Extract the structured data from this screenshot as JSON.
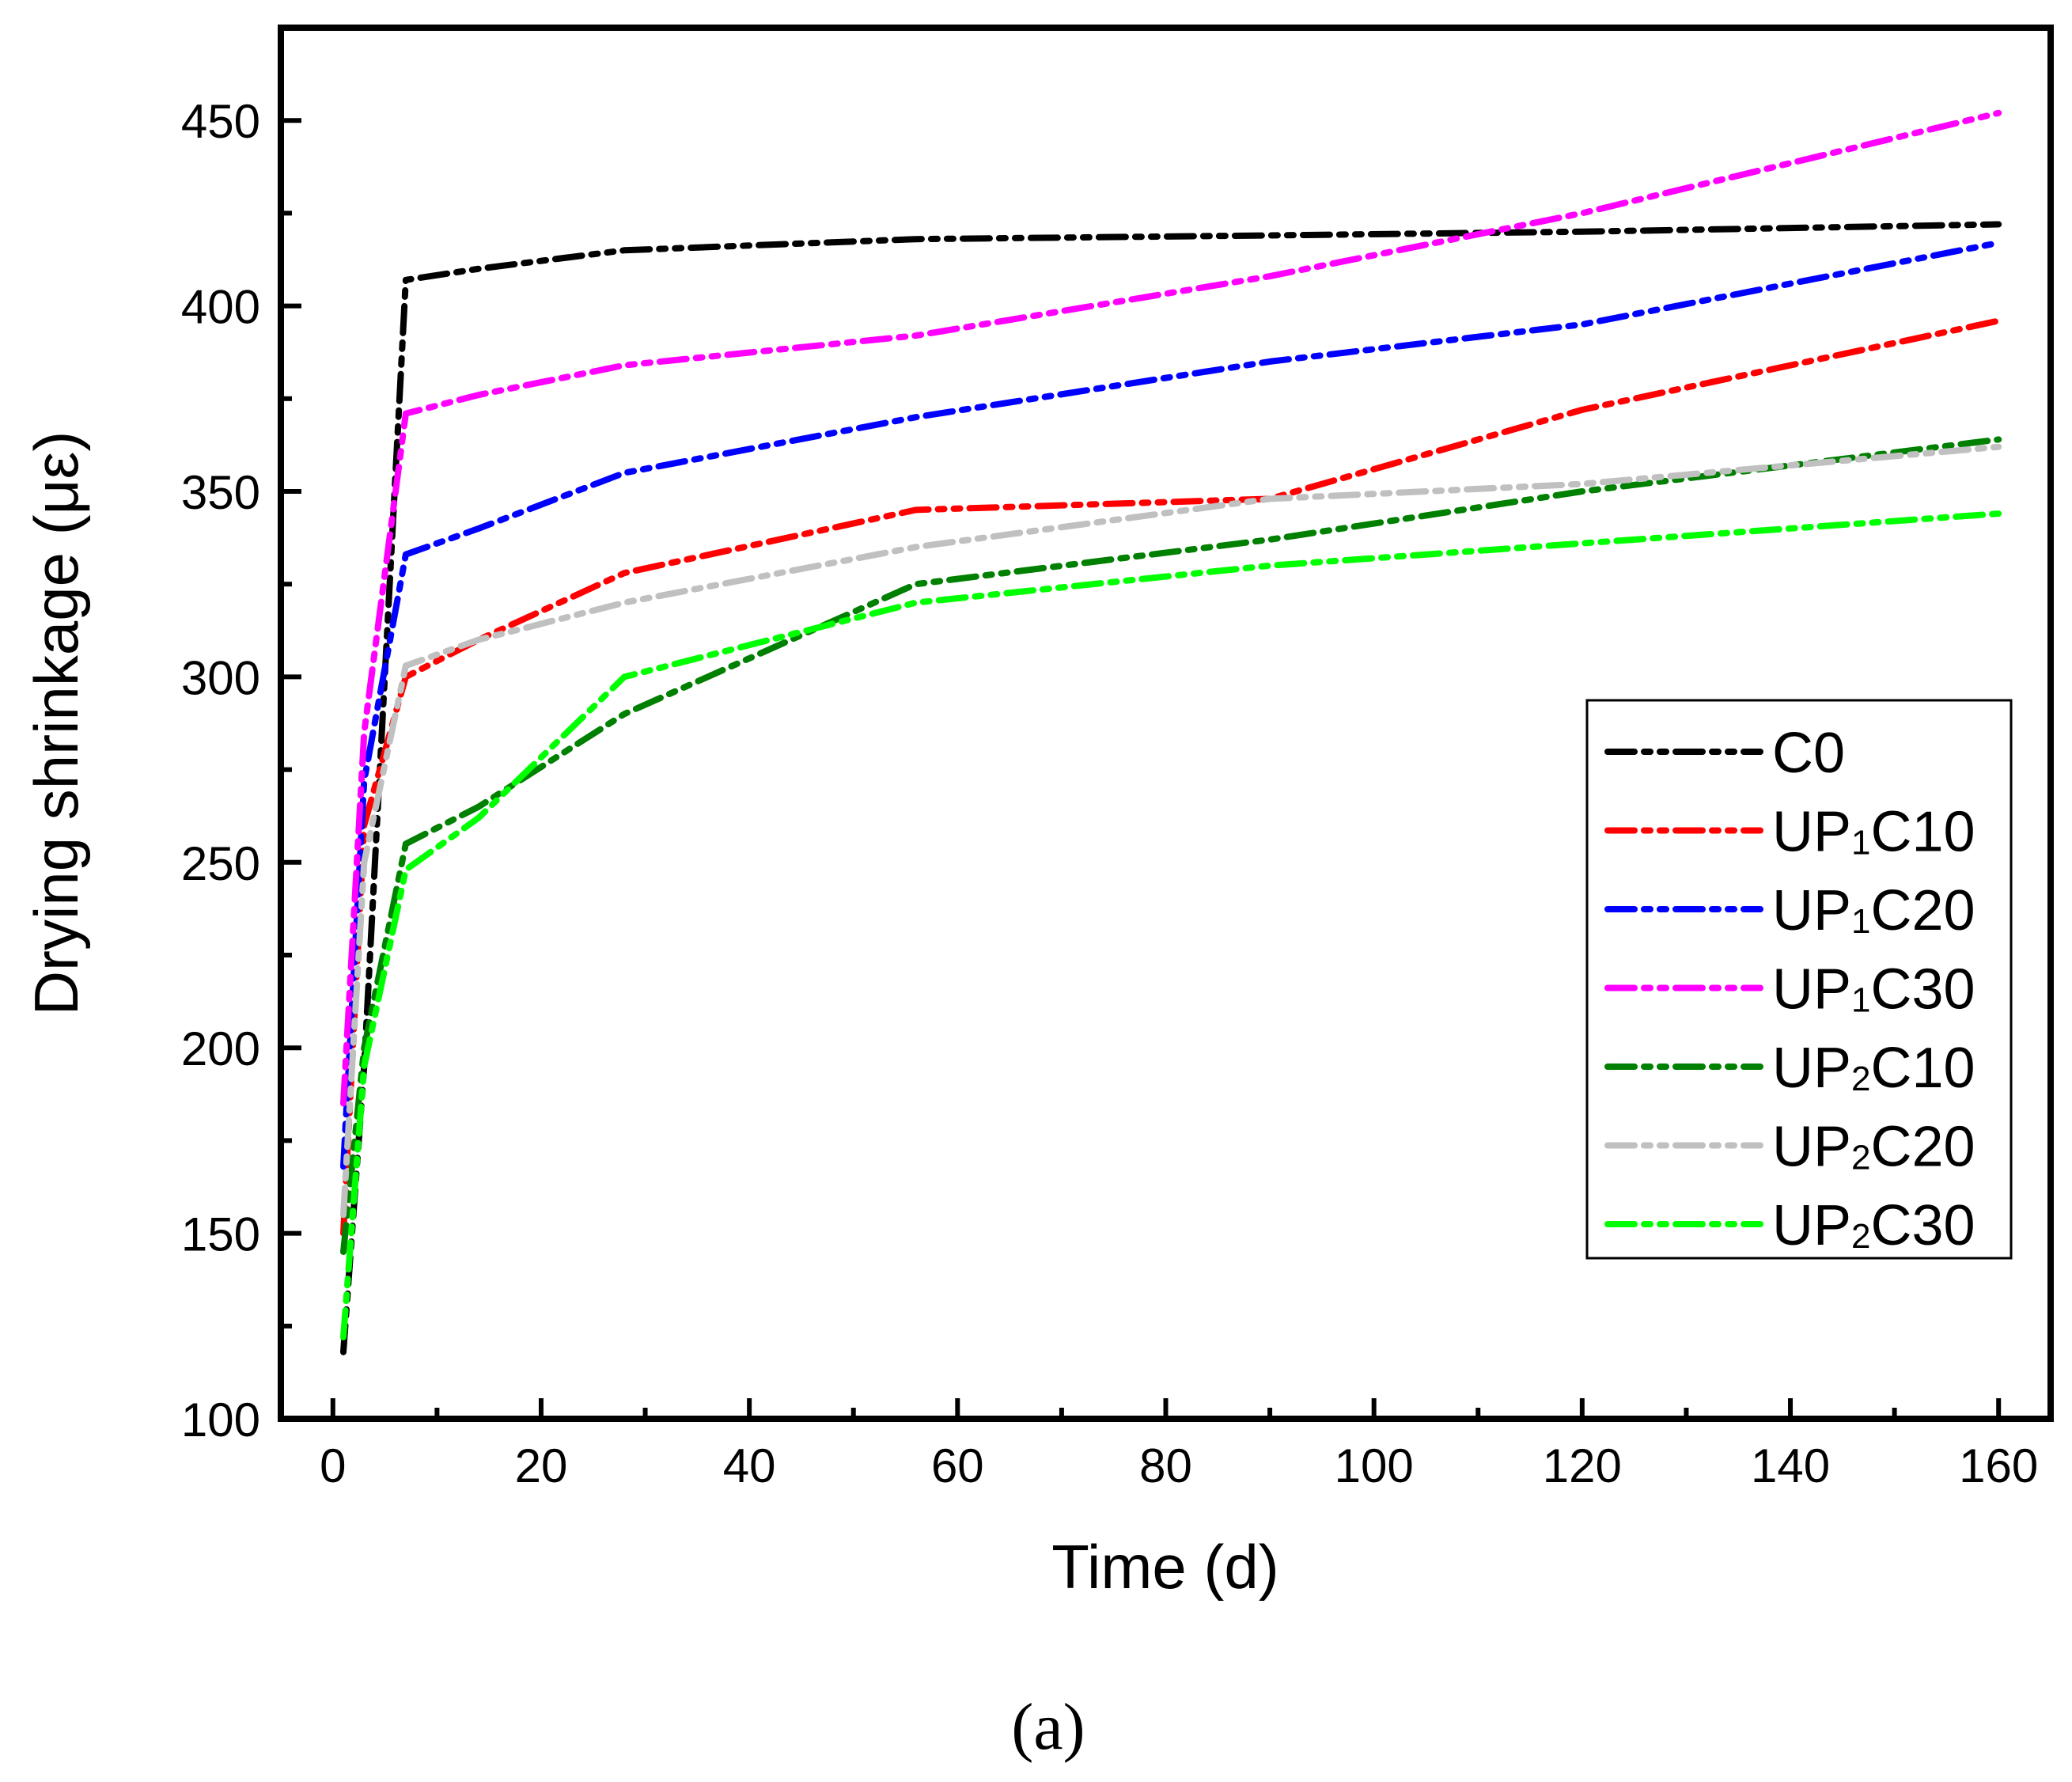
{
  "chart_data": {
    "type": "line",
    "xlabel": "Time (d)",
    "ylabel": "Drying shrinkage (με)",
    "xlim": [
      -5,
      165
    ],
    "ylim": [
      100,
      475
    ],
    "xticks": [
      0,
      20,
      40,
      60,
      80,
      100,
      120,
      140,
      160
    ],
    "yticks": [
      100,
      150,
      200,
      250,
      300,
      350,
      400,
      450
    ],
    "xtick_labels": [
      "0",
      "20",
      "40",
      "60",
      "80",
      "100",
      "120",
      "140",
      "160"
    ],
    "ytick_labels": [
      "100",
      "150",
      "200",
      "250",
      "300",
      "350",
      "400",
      "450"
    ],
    "grid": false,
    "legend_position": "right",
    "line_style": "dash-dot-dot",
    "series": [
      {
        "name": "C0",
        "legend_base": "C0",
        "legend_sub": "",
        "legend_suffix": "",
        "color": "#000000",
        "x": [
          1,
          3,
          7,
          14,
          28,
          56,
          90,
          120,
          160
        ],
        "y": [
          118,
          195,
          407,
          410,
          415,
          418,
          419,
          420,
          422
        ]
      },
      {
        "name": "UP1C10",
        "legend_base": "UP",
        "legend_sub": "1",
        "legend_suffix": "C10",
        "color": "#ff0000",
        "x": [
          1,
          3,
          7,
          14,
          28,
          56,
          90,
          120,
          160
        ],
        "y": [
          150,
          260,
          300,
          310,
          328,
          345,
          348,
          372,
          396
        ]
      },
      {
        "name": "UP1C20",
        "legend_base": "UP",
        "legend_sub": "1",
        "legend_suffix": "C20",
        "color": "#0000ff",
        "x": [
          1,
          3,
          7,
          14,
          28,
          56,
          90,
          120,
          160
        ],
        "y": [
          168,
          272,
          333,
          340,
          355,
          370,
          385,
          395,
          417
        ]
      },
      {
        "name": "UP1C30",
        "legend_base": "UP",
        "legend_sub": "1",
        "legend_suffix": "C30",
        "color": "#ff00ff",
        "x": [
          1,
          3,
          7,
          14,
          28,
          56,
          90,
          120,
          160
        ],
        "y": [
          185,
          285,
          371,
          376,
          384,
          392,
          408,
          425,
          452
        ]
      },
      {
        "name": "UP2C10",
        "legend_base": "UP",
        "legend_sub": "2",
        "legend_suffix": "C10",
        "color": "#008000",
        "x": [
          1,
          3,
          7,
          14,
          28,
          56,
          90,
          120,
          160
        ],
        "y": [
          145,
          200,
          255,
          265,
          290,
          325,
          337,
          350,
          364
        ]
      },
      {
        "name": "UP2C20",
        "legend_base": "UP",
        "legend_sub": "2",
        "legend_suffix": "C20",
        "color": "#c0c0c0",
        "x": [
          1,
          3,
          7,
          14,
          28,
          56,
          90,
          120,
          160
        ],
        "y": [
          155,
          250,
          303,
          310,
          320,
          335,
          348,
          352,
          362
        ]
      },
      {
        "name": "UP2C30",
        "legend_base": "UP",
        "legend_sub": "2",
        "legend_suffix": "C30",
        "color": "#00ff00",
        "x": [
          1,
          3,
          7,
          14,
          28,
          56,
          90,
          120,
          160
        ],
        "y": [
          122,
          195,
          248,
          262,
          300,
          320,
          330,
          336,
          344
        ]
      }
    ]
  },
  "caption": "(a)"
}
